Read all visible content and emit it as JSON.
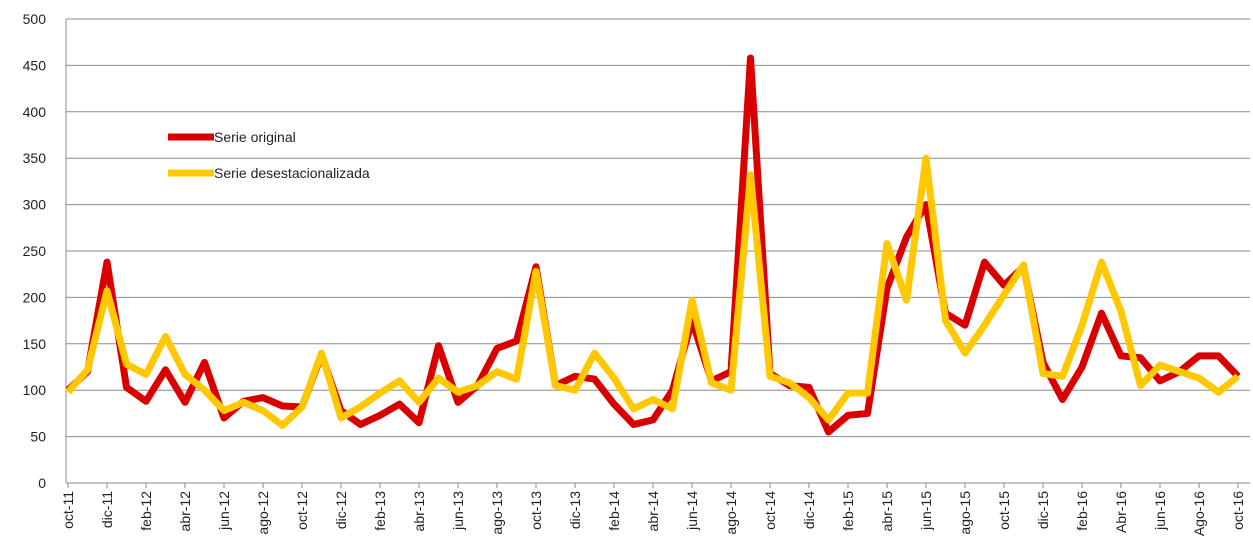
{
  "chart_data": {
    "type": "line",
    "categories": [
      "oct-11",
      null,
      "dic-11",
      null,
      "feb-12",
      null,
      "abr-12",
      null,
      "jun-12",
      null,
      "ago-12",
      null,
      "oct-12",
      null,
      "dic-12",
      null,
      "feb-13",
      null,
      "abr-13",
      null,
      "jun-13",
      null,
      "ago-13",
      null,
      "oct-13",
      null,
      "dic-13",
      null,
      "feb-14",
      null,
      "abr-14",
      null,
      "jun-14",
      null,
      "ago-14",
      null,
      "oct-14",
      null,
      "dic-14",
      null,
      "feb-15",
      null,
      "abr-15",
      null,
      "jun-15",
      null,
      "ago-15",
      null,
      "oct-15",
      null,
      "dic-15",
      null,
      "feb-16",
      null,
      "Abr-16",
      null,
      "jun-16",
      null,
      "Ago-16",
      null,
      "oct-16"
    ],
    "series": [
      {
        "name": "Serie original",
        "color": "#d90000",
        "values": [
          100,
          120,
          238,
          103,
          88,
          122,
          87,
          130,
          70,
          88,
          92,
          83,
          82,
          138,
          78,
          63,
          73,
          85,
          65,
          148,
          87,
          105,
          145,
          153,
          233,
          105,
          115,
          112,
          85,
          63,
          68,
          100,
          175,
          110,
          120,
          458,
          118,
          105,
          103,
          55,
          73,
          75,
          210,
          265,
          300,
          183,
          170,
          238,
          213,
          233,
          130,
          90,
          125,
          183,
          137,
          135,
          110,
          120,
          137,
          137,
          115
        ]
      },
      {
        "name": "Serie desestacionalizada",
        "color": "#ffc800",
        "values": [
          98,
          122,
          207,
          128,
          117,
          158,
          117,
          100,
          78,
          87,
          78,
          62,
          82,
          140,
          70,
          82,
          97,
          110,
          87,
          113,
          98,
          105,
          120,
          112,
          228,
          105,
          100,
          140,
          113,
          80,
          90,
          80,
          197,
          108,
          100,
          332,
          115,
          108,
          92,
          68,
          97,
          97,
          258,
          197,
          350,
          175,
          140,
          170,
          203,
          235,
          118,
          115,
          170,
          238,
          185,
          105,
          127,
          120,
          113,
          98,
          115
        ]
      }
    ],
    "ylim": [
      0,
      500
    ],
    "yticks": [
      0,
      50,
      100,
      150,
      200,
      250,
      300,
      350,
      400,
      450,
      500
    ],
    "grid": true
  }
}
